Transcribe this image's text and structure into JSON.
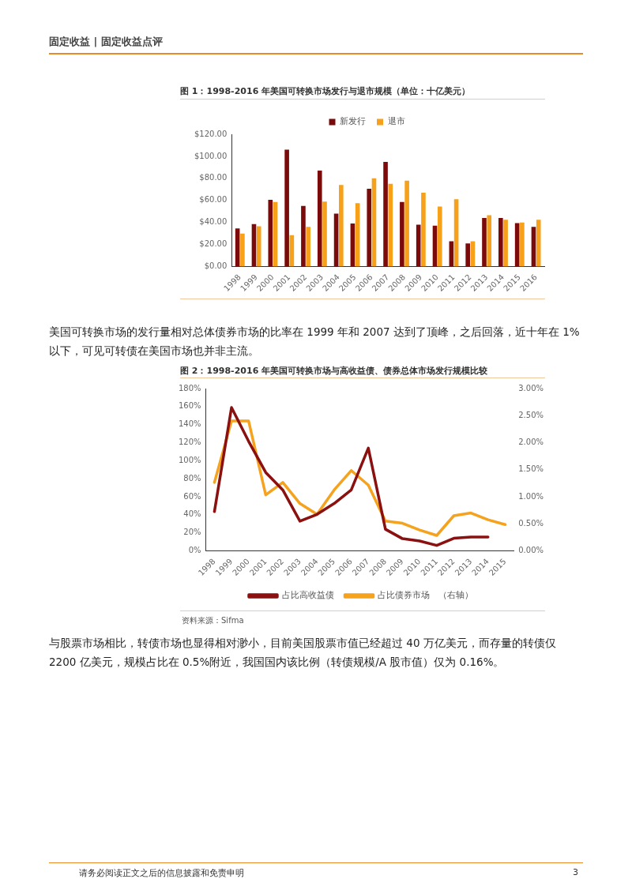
{
  "chart_data": [
    {
      "type": "bar",
      "title": "图 1：1998-2016 年美国可转换市场发行与退市规模（单位：十亿美元）",
      "categories": [
        "1998",
        "1999",
        "2000",
        "2001",
        "2002",
        "2003",
        "2004",
        "2005",
        "2006",
        "2007",
        "2008",
        "2009",
        "2010",
        "2011",
        "2012",
        "2013",
        "2014",
        "2015",
        "2016"
      ],
      "series": [
        {
          "name": "新发行",
          "color": "#7b0a0a",
          "values": [
            34.5,
            38.5,
            60.5,
            106,
            55,
            87,
            48,
            39,
            70.5,
            95,
            58.5,
            38,
            37,
            23,
            21,
            44,
            44,
            39.5,
            36
          ]
        },
        {
          "name": "退市",
          "color": "#f7a11a",
          "values": [
            30,
            36.5,
            58.5,
            28.5,
            36,
            59,
            74,
            57.5,
            80,
            75,
            78,
            67,
            54.5,
            61,
            23,
            46.5,
            42.5,
            40,
            42.5
          ]
        }
      ],
      "ylim": [
        0,
        120
      ],
      "yticks": [
        {
          "value": 0,
          "label": "$0.00"
        },
        {
          "value": 20,
          "label": "$20.00"
        },
        {
          "value": 40,
          "label": "$40.00"
        },
        {
          "value": 60,
          "label": "$60.00"
        },
        {
          "value": 80,
          "label": "$80.00"
        },
        {
          "value": 100,
          "label": "$100.00"
        },
        {
          "value": 120,
          "label": "$120.00"
        }
      ],
      "legend": "top",
      "grid": false,
      "annotations": [
        "固定收益 | 固定收益点评",
        "美国可转换市场的发行量相对总体债券市场的比率在 1999 年和 2007 达到了顶峰，之后回落，近十年在 1%以下，可见可转债在美国市场也并非主流。"
      ]
    },
    {
      "type": "line",
      "title": "图 2：1998-2016 年美国可转换市场与高收益债、债券总体市场发行规模比较",
      "categories": [
        "1998",
        "1999",
        "2000",
        "2001",
        "2002",
        "2003",
        "2004",
        "2005",
        "2006",
        "2007",
        "2008",
        "2009",
        "2010",
        "2011",
        "2012",
        "2013",
        "2014",
        "2015"
      ],
      "series": [
        {
          "name": "占比高收益债",
          "color": "#8b1010",
          "values": [
            43.5,
            159,
            121.5,
            87,
            67.5,
            33,
            40.5,
            52.5,
            67.5,
            114,
            24,
            13.5,
            11,
            6,
            14,
            15.3,
            15.3,
            null
          ]
        },
        {
          "name": "占比债券市场　（右轴）",
          "color": "#f5a31e",
          "axis": "y2",
          "values": [
            1.265,
            2.4,
            2.4,
            1.035,
            1.265,
            0.875,
            0.675,
            1.125,
            1.485,
            1.215,
            0.55,
            0.51,
            0.385,
            0.285,
            0.65,
            0.7,
            0.575,
            0.485
          ]
        }
      ],
      "ylim": [
        0,
        180
      ],
      "yticks": [
        {
          "value": 0,
          "label": "0%"
        },
        {
          "value": 20,
          "label": "20%"
        },
        {
          "value": 40,
          "label": "40%"
        },
        {
          "value": 60,
          "label": "60%"
        },
        {
          "value": 80,
          "label": "80%"
        },
        {
          "value": 100,
          "label": "100%"
        },
        {
          "value": 120,
          "label": "120%"
        },
        {
          "value": 140,
          "label": "140%"
        },
        {
          "value": 160,
          "label": "160%"
        },
        {
          "value": 180,
          "label": "180%"
        }
      ],
      "y2lim": [
        0,
        3
      ],
      "y2ticks": [
        {
          "value": 0,
          "label": "0.00%"
        },
        {
          "value": 0.5,
          "label": "0.50%"
        },
        {
          "value": 1,
          "label": "1.00%"
        },
        {
          "value": 1.5,
          "label": "1.50%"
        },
        {
          "value": 2,
          "label": "2.00%"
        },
        {
          "value": 2.5,
          "label": "2.50%"
        },
        {
          "value": 3,
          "label": "3.00%"
        }
      ],
      "legend": "bottom",
      "grid": false,
      "marker": "none",
      "line_style": "solid",
      "annotations": [
        "资料来源：Sifma",
        "与股票市场相比，转债市场也显得相对渺小，目前美国股票市值已经超过 40 万亿美元，而存量的转债仅 2200 亿美元，规模占比在 0.5%附近，我国国内该比例（转债规模/A 股市值）仅为 0.16%。",
        "请务必阅读正文之后的信息披露和免责申明",
        "3"
      ]
    }
  ]
}
